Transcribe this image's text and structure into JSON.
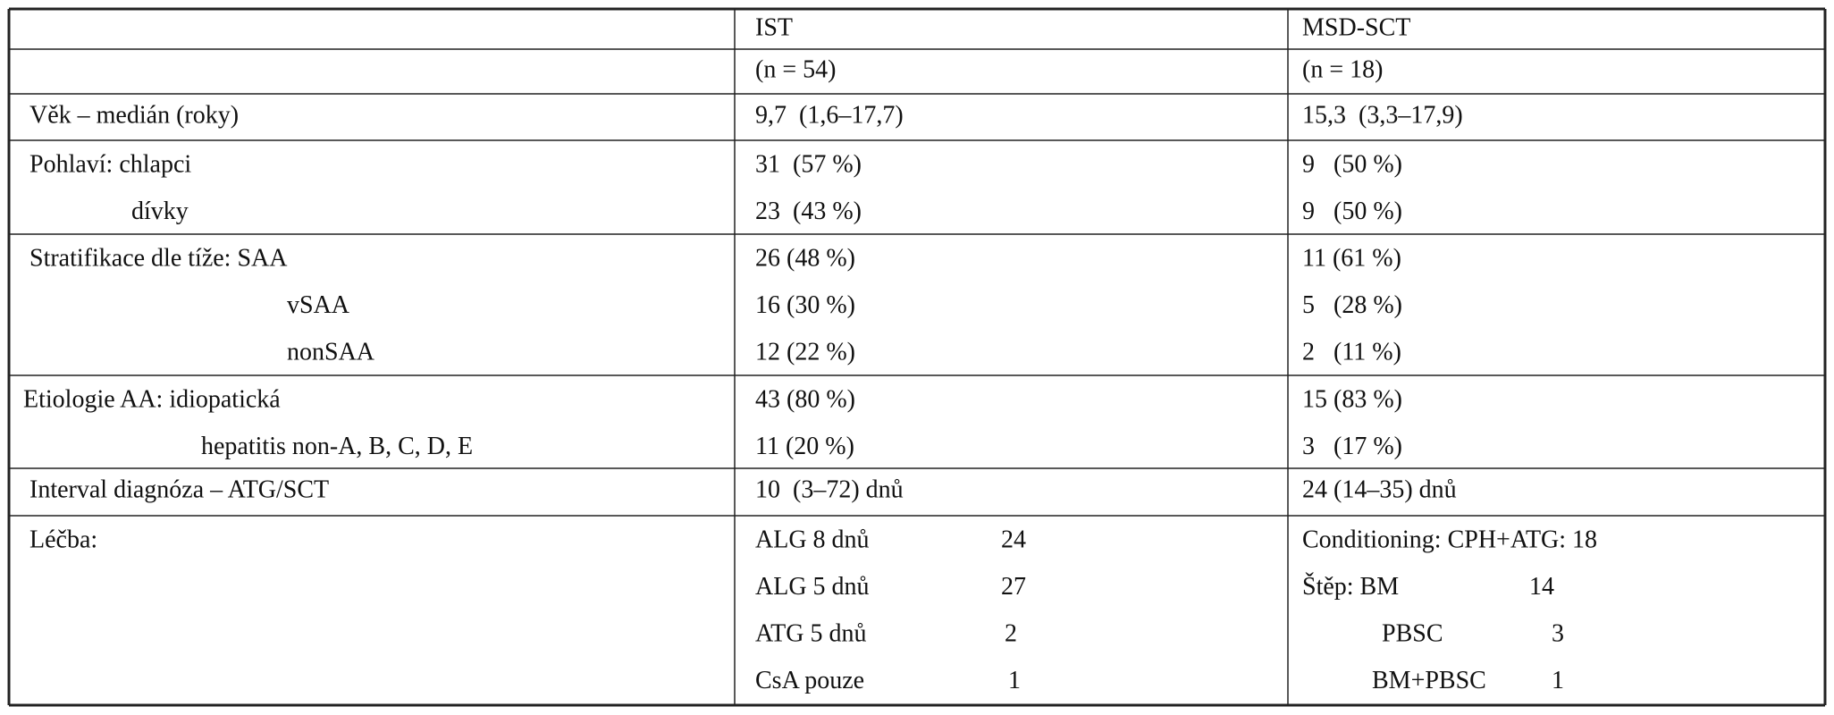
{
  "table": {
    "header": {
      "ist": "IST",
      "msd": "MSD-SCT"
    },
    "n_row": {
      "ist": "(n = 54)",
      "msd": "(n = 18)"
    },
    "rows": [
      {
        "label": [
          "Věk – medián (roky)"
        ],
        "ist": [
          [
            "9,7  (1,6–17,7)"
          ]
        ],
        "msd": [
          [
            "15,3  (3,3–17,9)"
          ]
        ]
      },
      {
        "label": [
          "Pohlaví: chlapci",
          "dívky"
        ],
        "ist": [
          [
            "31  (57 %)"
          ],
          [
            "23  (43 %)"
          ]
        ],
        "msd": [
          [
            "9   (50 %)"
          ],
          [
            "9   (50 %)"
          ]
        ]
      },
      {
        "label": [
          "Stratifikace dle tíže: SAA",
          "vSAA",
          "nonSAA"
        ],
        "ist": [
          [
            "26 (48 %)"
          ],
          [
            "16 (30 %)"
          ],
          [
            "12 (22 %)"
          ]
        ],
        "msd": [
          [
            "11 (61 %)"
          ],
          [
            "5   (28 %)"
          ],
          [
            "2   (11 %)"
          ]
        ]
      },
      {
        "label": [
          "Etiologie AA: idiopatická",
          "hepatitis non-A, B, C, D, E"
        ],
        "ist": [
          [
            "43 (80 %)"
          ],
          [
            "11 (20 %)"
          ]
        ],
        "msd": [
          [
            "15 (83 %)"
          ],
          [
            "3   (17 %)"
          ]
        ]
      },
      {
        "label": [
          "Interval diagnóza – ATG/SCT"
        ],
        "ist": [
          [
            "10  (3–72) dnů"
          ]
        ],
        "msd": [
          [
            "24 (14–35) dnů"
          ]
        ]
      },
      {
        "label": [
          "Léčba:"
        ],
        "ist": [
          [
            "ALG 8 dnů",
            "24"
          ],
          [
            "ALG 5 dnů",
            "27"
          ],
          [
            "ATG 5 dnů",
            "2"
          ],
          [
            "CsA pouze",
            "1"
          ]
        ],
        "msd": [
          [
            "Conditioning: CPH+ATG: 18"
          ],
          [
            "Štěp: BM",
            "14"
          ],
          [
            "PBSC",
            "3"
          ],
          [
            "BM+PBSC",
            "1"
          ]
        ]
      }
    ]
  }
}
